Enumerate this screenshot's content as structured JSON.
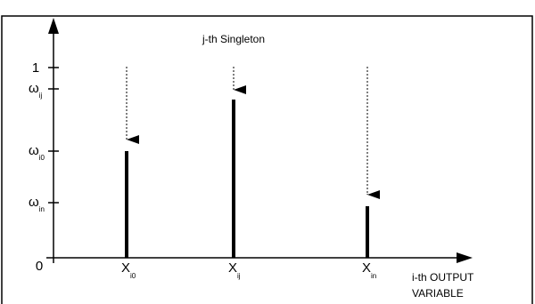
{
  "annotation": "j-th Singleton",
  "origin": "0",
  "y_labels": [
    {
      "text": "1"
    },
    {
      "symbol": "ω",
      "sub": "ij"
    },
    {
      "symbol": "ω",
      "sub": "i0"
    },
    {
      "symbol": "ω",
      "sub": "in"
    }
  ],
  "x_labels": [
    {
      "symbol": "X",
      "sub": "i0"
    },
    {
      "symbol": "X",
      "sub": "ij"
    },
    {
      "symbol": "X",
      "sub": "in"
    }
  ],
  "x_axis_label": [
    "i-th OUTPUT",
    "VARIABLE"
  ]
}
